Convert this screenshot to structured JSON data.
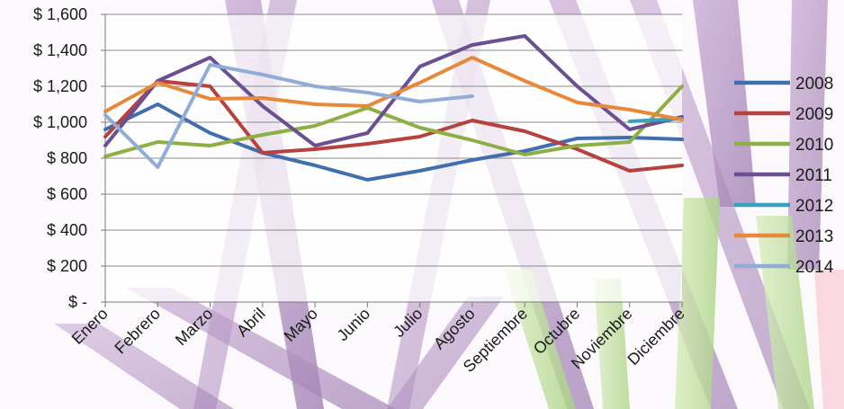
{
  "chart_data": {
    "type": "line",
    "title": "",
    "xlabel": "",
    "ylabel": "",
    "categories": [
      "Enero",
      "Febrero",
      "Marzo",
      "Abril",
      "Mayo",
      "Junio",
      "Julio",
      "Agosto",
      "Septiembre",
      "Octubre",
      "Noviembre",
      "Diciembre"
    ],
    "ylim": [
      0,
      1600
    ],
    "y_ticks": [
      0,
      200,
      400,
      600,
      800,
      1000,
      1200,
      1400,
      1600
    ],
    "y_tick_labels": [
      "$ -",
      "$ 200",
      "$ 400",
      "$ 600",
      "$ 800",
      "$ 1,000",
      "$ 1,200",
      "$ 1,400",
      "$ 1,600"
    ],
    "grid": true,
    "legend_position": "right",
    "series": [
      {
        "name": "2008",
        "color": "#3f6fad",
        "values": [
          960,
          1100,
          940,
          830,
          760,
          680,
          730,
          790,
          840,
          910,
          915,
          905
        ]
      },
      {
        "name": "2009",
        "color": "#b7413e",
        "values": [
          920,
          1230,
          1200,
          830,
          850,
          880,
          920,
          1010,
          950,
          850,
          730,
          760
        ]
      },
      {
        "name": "2010",
        "color": "#8cb043",
        "values": [
          810,
          890,
          870,
          930,
          980,
          1080,
          970,
          900,
          820,
          870,
          890,
          1200
        ]
      },
      {
        "name": "2011",
        "color": "#6a4f93",
        "values": [
          870,
          1230,
          1360,
          1090,
          870,
          940,
          1310,
          1430,
          1480,
          1200,
          960,
          1030
        ]
      },
      {
        "name": "2012",
        "color": "#3aa0be",
        "values": [
          null,
          null,
          null,
          null,
          null,
          null,
          null,
          null,
          null,
          null,
          1005,
          1020
        ]
      },
      {
        "name": "2013",
        "color": "#e6893a",
        "values": [
          1060,
          1220,
          1130,
          1135,
          1100,
          1090,
          1220,
          1360,
          1230,
          1110,
          1070,
          1015
        ]
      },
      {
        "name": "2014",
        "color": "#91acd6",
        "values": [
          1040,
          750,
          1320,
          1265,
          1200,
          1165,
          1115,
          1145,
          null,
          null,
          null,
          null
        ]
      }
    ]
  }
}
